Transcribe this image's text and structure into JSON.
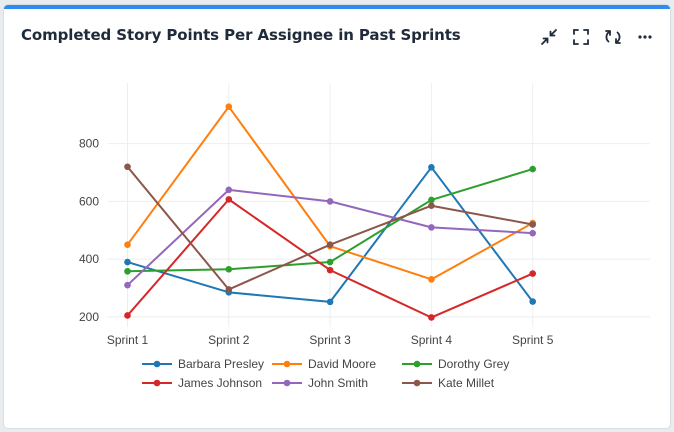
{
  "card": {
    "title": "Completed Story Points Per Assignee in Past Sprints",
    "toolbar": [
      {
        "name": "collapse-icon",
        "label": "Collapse"
      },
      {
        "name": "fullscreen-icon",
        "label": "Full screen"
      },
      {
        "name": "refresh-icon",
        "label": "Refresh"
      },
      {
        "name": "more-icon",
        "label": "More"
      }
    ],
    "accent_color": "#2d8cf0"
  },
  "chart_data": {
    "type": "line",
    "title": "",
    "xlabel": "",
    "ylabel": "",
    "categories": [
      "Sprint 1",
      "Sprint 2",
      "Sprint 3",
      "Sprint 4",
      "Sprint 5"
    ],
    "ylim": [
      165,
      1010
    ],
    "yticks": [
      200,
      400,
      600,
      800
    ],
    "grid": true,
    "legend_position": "bottom",
    "series": [
      {
        "name": "Barbara Presley",
        "color": "#1f77b4",
        "values": [
          390,
          285,
          252,
          718,
          253
        ]
      },
      {
        "name": "David Moore",
        "color": "#ff7f0e",
        "values": [
          450,
          928,
          445,
          330,
          525
        ]
      },
      {
        "name": "Dorothy Grey",
        "color": "#2ca02c",
        "values": [
          358,
          365,
          390,
          605,
          712
        ]
      },
      {
        "name": "James Johnson",
        "color": "#d62728",
        "values": [
          205,
          607,
          362,
          198,
          350
        ]
      },
      {
        "name": "John Smith",
        "color": "#9467bd",
        "values": [
          310,
          640,
          600,
          510,
          490
        ]
      },
      {
        "name": "Kate Millet",
        "color": "#8c564b",
        "values": [
          720,
          295,
          450,
          585,
          520
        ]
      }
    ]
  }
}
